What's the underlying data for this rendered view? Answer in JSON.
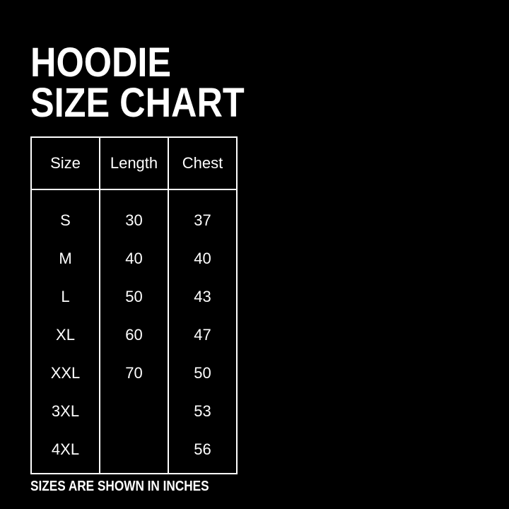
{
  "title": {
    "line1": "HOODIE",
    "line2": "SIZE CHART"
  },
  "table": {
    "headers": [
      "Size",
      "Length",
      "Chest"
    ],
    "rows": [
      [
        "S",
        "30",
        "37"
      ],
      [
        "M",
        "40",
        "40"
      ],
      [
        "L",
        "50",
        "43"
      ],
      [
        "XL",
        "60",
        "47"
      ],
      [
        "XXL",
        "70",
        "50"
      ],
      [
        "3XL",
        "",
        "53"
      ],
      [
        "4XL",
        "",
        "56"
      ]
    ]
  },
  "footer": "SIZES ARE SHOWN IN INCHES",
  "colors": {
    "background": "#000000",
    "text": "#ffffff"
  }
}
